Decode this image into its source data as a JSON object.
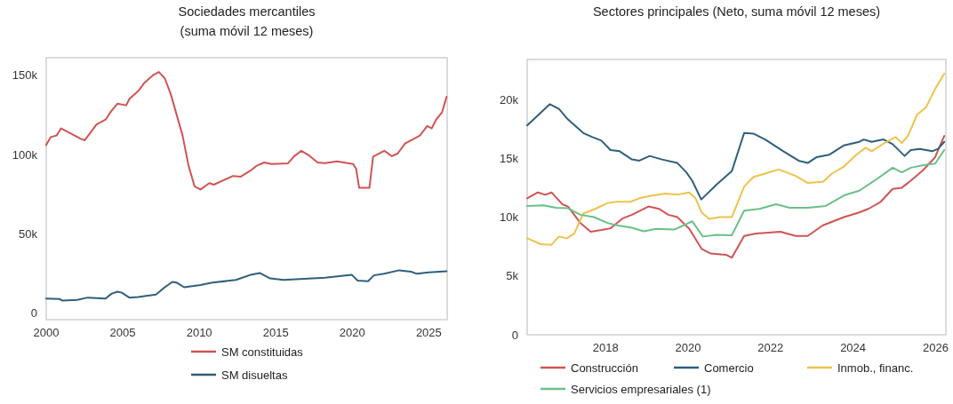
{
  "chart_data": [
    {
      "type": "line",
      "title": "Sociedades mercantiles\n(suma móvil 12 meses)",
      "xlim": [
        2000,
        2026.2
      ],
      "xticks": [
        2000,
        2005,
        2010,
        2015,
        2020,
        2025
      ],
      "ylim": [
        -4000,
        161000
      ],
      "yticks": [
        0,
        {
          "value": 50000,
          "label": "50k"
        },
        {
          "value": 100000,
          "label": "100k"
        },
        {
          "value": 150000,
          "label": "150k"
        }
      ],
      "grid": false,
      "legend": "bottom",
      "series": [
        {
          "name": "SM constituidas",
          "color": "#d05454",
          "x": [
            2000.0,
            2000.29,
            2000.68,
            2000.97,
            2001.55,
            2002.23,
            2002.52,
            2003.29,
            2003.88,
            2004.26,
            2004.65,
            2005.23,
            2005.43,
            2006.01,
            2006.4,
            2006.98,
            2007.36,
            2007.75,
            2008.14,
            2008.91,
            2009.3,
            2009.69,
            2010.08,
            2010.66,
            2010.95,
            2011.63,
            2012.21,
            2012.69,
            2013.37,
            2013.76,
            2014.24,
            2014.73,
            2015.79,
            2016.18,
            2016.67,
            2017.15,
            2017.73,
            2018.22,
            2018.99,
            2020.06,
            2020.25,
            2020.45,
            2021.12,
            2021.36,
            2022.09,
            2022.58,
            2022.96,
            2023.45,
            2024.42,
            2024.9,
            2025.19,
            2025.48,
            2025.87,
            2026.16
          ],
          "values": [
            106000,
            111000,
            112000,
            116500,
            113500,
            110000,
            109000,
            119000,
            122000,
            127500,
            132000,
            131000,
            135000,
            140000,
            145000,
            150000,
            152000,
            148000,
            138000,
            112000,
            93000,
            80000,
            78000,
            82000,
            81000,
            84000,
            86500,
            86000,
            90000,
            93000,
            95000,
            94000,
            94400,
            98700,
            102400,
            99600,
            95000,
            94600,
            95700,
            94000,
            91000,
            79000,
            79000,
            98700,
            102400,
            99000,
            100600,
            107000,
            112000,
            118000,
            116500,
            122000,
            126700,
            136400
          ]
        },
        {
          "name": "SM disueltas",
          "color": "#2f5f7c",
          "x": [
            2000.0,
            2000.87,
            2001.07,
            2002.03,
            2002.71,
            2003.88,
            2004.26,
            2004.65,
            2004.94,
            2005.43,
            2006.01,
            2007.17,
            2007.75,
            2008.24,
            2008.53,
            2009.01,
            2010.08,
            2010.85,
            2012.4,
            2013.37,
            2013.95,
            2014.63,
            2015.5,
            2016.86,
            2018.22,
            2019.96,
            2020.35,
            2021.03,
            2021.41,
            2022.09,
            2023.06,
            2023.84,
            2024.22,
            2025.0,
            2026.16
          ],
          "values": [
            9300,
            9000,
            8000,
            8400,
            9900,
            9300,
            12300,
            13600,
            13000,
            9900,
            10300,
            11800,
            16400,
            19800,
            19300,
            16400,
            17800,
            19300,
            21000,
            24300,
            25400,
            22000,
            21000,
            21700,
            22400,
            24300,
            20600,
            20200,
            23900,
            24900,
            27100,
            26200,
            24900,
            25800,
            26500
          ]
        }
      ]
    },
    {
      "type": "line",
      "title": "Sectores principales (Neto, suma móvil 12 meses)",
      "xlim": [
        2016.1,
        2026.25
      ],
      "xticks": [
        2018,
        2020,
        2022,
        2024,
        2026
      ],
      "ylim": [
        0,
        23400
      ],
      "yticks": [
        0,
        {
          "value": 5000,
          "label": "5k"
        },
        {
          "value": 10000,
          "label": "10k"
        },
        {
          "value": 15000,
          "label": "15k"
        },
        {
          "value": 20000,
          "label": "20k"
        }
      ],
      "grid": false,
      "legend": "bottom",
      "series": [
        {
          "name": "Construcción",
          "color": "#d05454",
          "x": [
            2016.1,
            2016.36,
            2016.54,
            2016.69,
            2016.95,
            2017.09,
            2017.39,
            2017.64,
            2017.9,
            2018.12,
            2018.42,
            2018.64,
            2019.04,
            2019.3,
            2019.52,
            2019.74,
            2020.03,
            2020.33,
            2020.55,
            2020.92,
            2021.06,
            2021.36,
            2021.65,
            2022.24,
            2022.61,
            2022.9,
            2023.27,
            2023.78,
            2024.15,
            2024.37,
            2024.67,
            2024.96,
            2025.18,
            2025.4,
            2025.7,
            2025.99,
            2026.21
          ],
          "values": [
            11600,
            12100,
            11900,
            12100,
            11100,
            10900,
            9500,
            8750,
            8900,
            9050,
            9900,
            10200,
            10900,
            10700,
            10200,
            10000,
            9000,
            7300,
            6900,
            6800,
            6550,
            8400,
            8600,
            8750,
            8400,
            8400,
            9300,
            10000,
            10400,
            10700,
            11300,
            12400,
            12500,
            13100,
            14000,
            15100,
            16900
          ]
        },
        {
          "name": "Comercio",
          "color": "#2f5f7c",
          "x": [
            2016.1,
            2016.65,
            2016.87,
            2017.09,
            2017.46,
            2017.68,
            2017.9,
            2018.12,
            2018.34,
            2018.64,
            2018.82,
            2019.07,
            2019.37,
            2019.74,
            2019.96,
            2020.1,
            2020.32,
            2020.7,
            2021.06,
            2021.36,
            2021.58,
            2021.87,
            2022.31,
            2022.68,
            2022.9,
            2023.12,
            2023.42,
            2023.78,
            2024.15,
            2024.26,
            2024.45,
            2024.74,
            2024.96,
            2025.25,
            2025.4,
            2025.62,
            2025.92,
            2026.06,
            2026.21
          ],
          "values": [
            17800,
            19600,
            19200,
            18300,
            17150,
            16800,
            16500,
            15700,
            15600,
            14900,
            14800,
            15200,
            14900,
            14600,
            13800,
            13100,
            11500,
            12800,
            13900,
            17150,
            17100,
            16600,
            15600,
            14800,
            14600,
            15100,
            15300,
            16100,
            16400,
            16600,
            16400,
            16600,
            16200,
            15200,
            15700,
            15800,
            15600,
            15800,
            16400
          ]
        },
        {
          "name": "Inmob., financ.",
          "color": "#eec24c",
          "x": [
            2016.1,
            2016.43,
            2016.69,
            2016.87,
            2017.06,
            2017.24,
            2017.46,
            2017.75,
            2018.05,
            2018.27,
            2018.6,
            2018.82,
            2019.07,
            2019.45,
            2019.74,
            2020.03,
            2020.18,
            2020.33,
            2020.51,
            2020.77,
            2021.06,
            2021.36,
            2021.58,
            2021.95,
            2022.2,
            2022.61,
            2022.9,
            2023.27,
            2023.49,
            2023.78,
            2024.08,
            2024.3,
            2024.45,
            2024.74,
            2025.03,
            2025.18,
            2025.33,
            2025.55,
            2025.77,
            2025.99,
            2026.21
          ],
          "values": [
            8200,
            7700,
            7650,
            8350,
            8200,
            8600,
            10300,
            10700,
            11200,
            11300,
            11300,
            11600,
            11800,
            12000,
            11900,
            12100,
            11600,
            10400,
            9850,
            10000,
            10000,
            12600,
            13400,
            13800,
            14050,
            13500,
            12900,
            13000,
            13700,
            14300,
            15300,
            15900,
            15600,
            16250,
            16800,
            16300,
            16900,
            18700,
            19350,
            20900,
            22200
          ]
        },
        {
          "name": "Servicios empresariales (1)",
          "color": "#6cbf8a",
          "x": [
            2016.1,
            2016.5,
            2016.8,
            2017.09,
            2017.39,
            2017.72,
            2018.05,
            2018.27,
            2018.64,
            2018.93,
            2019.22,
            2019.67,
            2019.96,
            2020.1,
            2020.36,
            2020.7,
            2021.06,
            2021.36,
            2021.73,
            2022.13,
            2022.46,
            2022.9,
            2023.34,
            2023.78,
            2024.15,
            2024.52,
            2024.96,
            2025.18,
            2025.4,
            2025.77,
            2025.99,
            2026.21
          ],
          "values": [
            10950,
            11000,
            10800,
            10750,
            10200,
            10000,
            9500,
            9300,
            9100,
            8800,
            9000,
            8950,
            9400,
            9650,
            8350,
            8500,
            8450,
            10550,
            10700,
            11100,
            10800,
            10800,
            10950,
            11850,
            12250,
            13100,
            14200,
            13800,
            14200,
            14450,
            14550,
            15700
          ]
        }
      ]
    }
  ]
}
